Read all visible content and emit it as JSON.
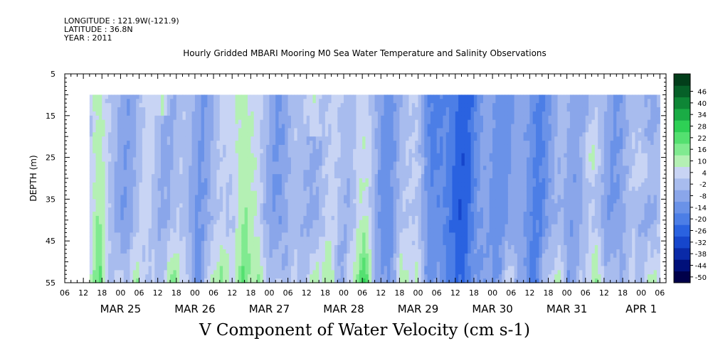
{
  "header": {
    "longitude": "LONGITUDE : 121.9W(-121.9)",
    "latitude": "LATITUDE : 36.8N",
    "year": "YEAR : 2011"
  },
  "chart_data": {
    "type": "heatmap",
    "title": "Hourly Gridded MBARI Mooring M0 Sea Water Temperature and Salinity Observations",
    "caption": "V Component of Water Velocity (cm s-1)",
    "ylabel": "DEPTH (m)",
    "xlabel": "",
    "y_axis_inverted": true,
    "ylim": [
      5,
      55
    ],
    "y_ticks": [
      5,
      15,
      25,
      35,
      45,
      55
    ],
    "data_depth_range": [
      10,
      55
    ],
    "x_start": "2011-03-24T06:00",
    "x_end": "2011-04-01T08:00",
    "data_start": "2011-03-24T14:00",
    "data_end": "2011-04-01T06:00",
    "hour_tick_labels": [
      "06",
      "12",
      "18",
      "00",
      "06",
      "12",
      "18",
      "00",
      "06",
      "12",
      "18",
      "00",
      "06",
      "12",
      "18",
      "00",
      "06",
      "12",
      "18",
      "00",
      "06",
      "12",
      "18",
      "00",
      "06",
      "12",
      "18",
      "00",
      "06",
      "12",
      "18",
      "00",
      "06"
    ],
    "day_labels": [
      "MAR 25",
      "MAR 26",
      "MAR 27",
      "MAR 28",
      "MAR 29",
      "MAR 30",
      "MAR 31",
      "APR  1"
    ],
    "colorbar": {
      "levels": [
        -50,
        -44,
        -38,
        -32,
        -26,
        -20,
        -14,
        -8,
        -2,
        4,
        10,
        16,
        22,
        28,
        34,
        40,
        46
      ],
      "min": -50,
      "max": 50,
      "colors_low_to_high": [
        "#00004a",
        "#00107a",
        "#0a2aa8",
        "#1646cc",
        "#2a62e0",
        "#4c7ee6",
        "#6a92e8",
        "#8aa6ea",
        "#a8bcee",
        "#c8d4f4",
        "#b4f0b4",
        "#80ea90",
        "#54e070",
        "#2ed055",
        "#1aac45",
        "#0e8636",
        "#066028",
        "#023e1a"
      ]
    },
    "field_description": "mostly weakly negative (southward) velocity -2 to -20 cm/s; strongest negative -26 to -32 near MAR 29 12-18; positive green bands 4-16 cm/s near MAR 24 14-18, MAR 26 12-18, MAR 28 00-06, near-bottom patches",
    "sample_values": [
      {
        "time": "2011-03-24T15:00",
        "depth": 30,
        "v": 10
      },
      {
        "time": "2011-03-26T15:00",
        "depth": 30,
        "v": 8
      },
      {
        "time": "2011-03-27T13:00",
        "depth": 15,
        "v": 6
      },
      {
        "time": "2011-03-28T05:00",
        "depth": 30,
        "v": 10
      },
      {
        "time": "2011-03-28T20:00",
        "depth": 30,
        "v": 4
      },
      {
        "time": "2011-03-29T13:00",
        "depth": 30,
        "v": -28
      },
      {
        "time": "2011-03-30T04:00",
        "depth": 25,
        "v": -16
      },
      {
        "time": "2011-03-30T15:00",
        "depth": 47,
        "v": 6
      },
      {
        "time": "2011-03-31T07:00",
        "depth": 25,
        "v": 6
      },
      {
        "time": "2011-04-01T00:00",
        "depth": 28,
        "v": 6
      }
    ]
  }
}
